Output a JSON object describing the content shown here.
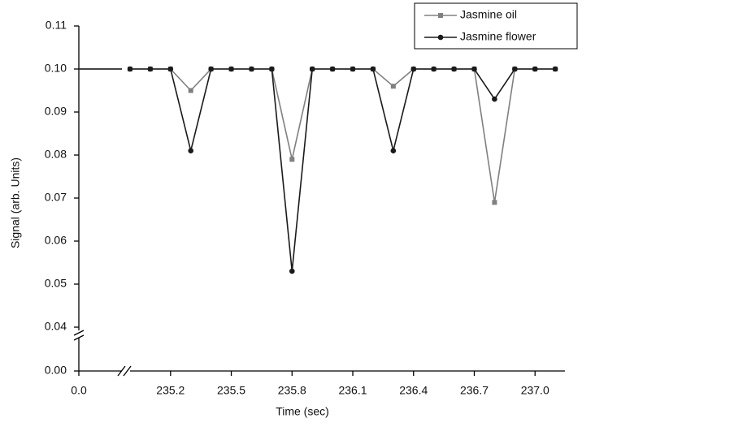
{
  "chart_data": {
    "type": "line",
    "x_label": "Time (sec)",
    "y_label": "Signal (arb. Units)",
    "x": [
      0,
      0.2,
      235.0,
      235.1,
      235.2,
      235.3,
      235.4,
      235.5,
      235.6,
      235.7,
      235.8,
      235.9,
      236.0,
      236.1,
      236.2,
      236.3,
      236.4,
      236.5,
      236.6,
      236.7,
      236.8,
      236.9,
      237.0,
      237.1
    ],
    "series": [
      {
        "name": "Jasmine oil",
        "color": "#808080",
        "marker": "square",
        "values": [
          0.1,
          0.1,
          0.1,
          0.1,
          0.1,
          0.095,
          0.1,
          0.1,
          0.1,
          0.1,
          0.079,
          0.1,
          0.1,
          0.1,
          0.1,
          0.096,
          0.1,
          0.1,
          0.1,
          0.1,
          0.069,
          0.1,
          0.1,
          0.1
        ]
      },
      {
        "name": "Jasmine flower",
        "color": "#1a1a1a",
        "marker": "circle",
        "values": [
          0.1,
          0.1,
          0.1,
          0.1,
          0.1,
          0.081,
          0.1,
          0.1,
          0.1,
          0.1,
          0.053,
          0.1,
          0.1,
          0.1,
          0.1,
          0.081,
          0.1,
          0.1,
          0.1,
          0.1,
          0.093,
          0.1,
          0.1,
          0.1
        ]
      }
    ],
    "xlim": [
      [
        0,
        0.2
      ],
      [
        234.98,
        237.15
      ]
    ],
    "ylim": [
      [
        0,
        0.01
      ],
      [
        0.038,
        0.11
      ]
    ],
    "xticks": [
      {
        "value": 0,
        "label": "0.0"
      },
      235.2,
      235.5,
      235.8,
      236.1,
      236.4,
      236.7,
      {
        "value": 237,
        "label": "237.0"
      }
    ],
    "yticks": [
      {
        "value": 0,
        "label": "0.00"
      },
      0.04,
      0.05,
      0.06,
      0.07,
      0.08,
      0.09,
      {
        "value": 0.1,
        "label": "0.10"
      },
      0.11
    ],
    "legend": "top-right"
  }
}
